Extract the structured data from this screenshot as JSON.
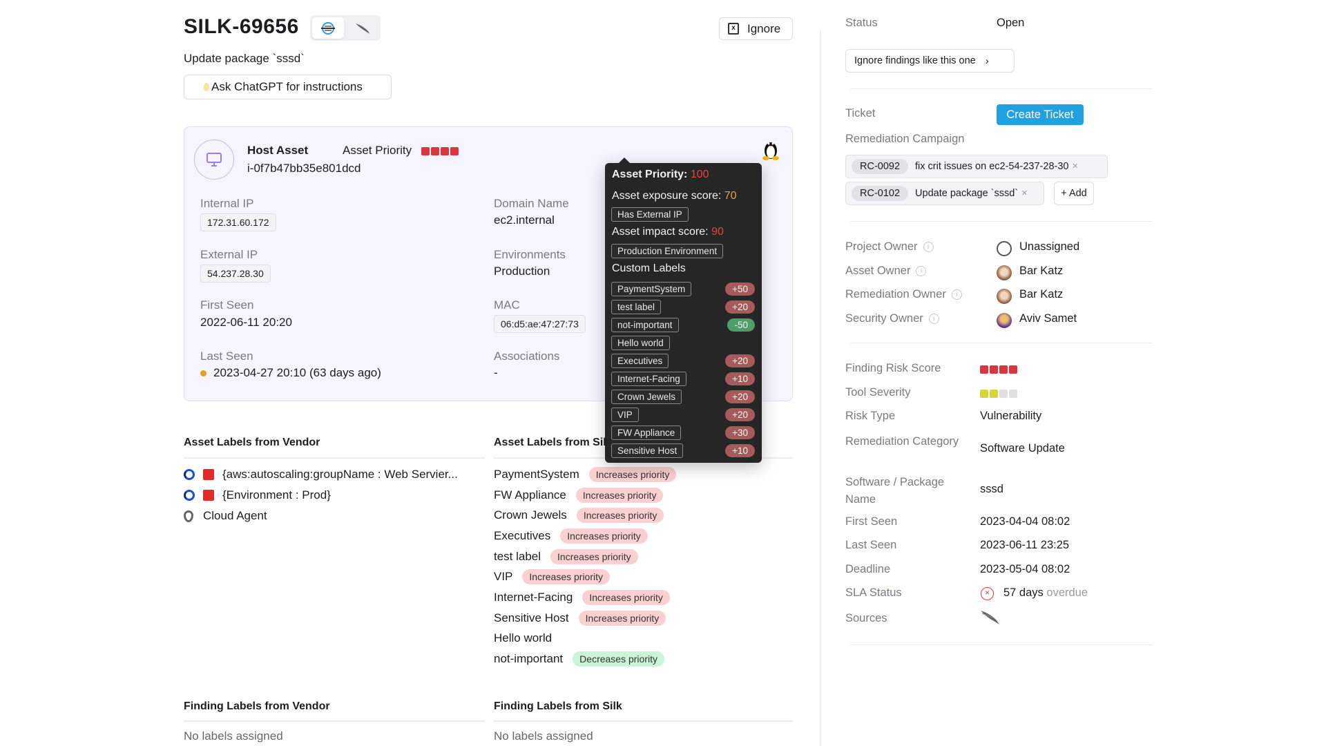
{
  "header": {
    "title": "SILK-69656",
    "subtitle": "Update package `sssd`",
    "ignore_label": "Ignore",
    "chatgpt_label": "Ask ChatGPT for instructions",
    "sources": [
      "silk-logo-icon",
      "crowdstrike-falcon-icon"
    ]
  },
  "asset": {
    "type_label": "Host Asset",
    "id": "i-0f7b47bb35e801dcd",
    "priority_label": "Asset Priority",
    "priority_level": 4,
    "os_icon": "linux-penguin-icon",
    "internal_ip_label": "Internal IP",
    "internal_ip": "172.31.60.172",
    "external_ip_label": "External IP",
    "external_ip": "54.237.28.30",
    "first_seen_label": "First Seen",
    "first_seen": "2022-06-11 20:20",
    "last_seen_label": "Last Seen",
    "last_seen": "2023-04-27 20:10 (63 days ago)",
    "domain_label": "Domain Name",
    "domain": "ec2.internal",
    "env_label": "Environments",
    "env": "Production",
    "mac_label": "MAC",
    "mac": "06:d5:ae:47:27:73",
    "assoc_label": "Associations",
    "assoc": "-"
  },
  "tooltip": {
    "priority_label": "Asset Priority:",
    "priority_value": "100",
    "exposure_label": "Asset exposure score:",
    "exposure_value": "70",
    "exposure_tags": [
      "Has External IP"
    ],
    "impact_label": "Asset impact score:",
    "impact_value": "90",
    "impact_tags": [
      "Production Environment"
    ],
    "custom_label": "Custom Labels",
    "custom": [
      {
        "name": "PaymentSystem",
        "score": "+50"
      },
      {
        "name": "test label",
        "score": "+20"
      },
      {
        "name": "not-important",
        "score": "-50"
      },
      {
        "name": "Hello world",
        "score": ""
      },
      {
        "name": "Executives",
        "score": "+20"
      },
      {
        "name": "Internet-Facing",
        "score": "+10"
      },
      {
        "name": "Crown Jewels",
        "score": "+20"
      },
      {
        "name": "VIP",
        "score": "+20"
      },
      {
        "name": "FW Appliance",
        "score": "+30"
      },
      {
        "name": "Sensitive Host",
        "score": "+10"
      }
    ]
  },
  "vendor_labels": {
    "title": "Asset Labels from Vendor",
    "items": [
      {
        "text": "{aws:autoscaling:groupName : Web Servier...",
        "icons": [
          "vendor-ring-icon",
          "aws-tag-icon"
        ]
      },
      {
        "text": "{Environment : Prod}",
        "icons": [
          "vendor-ring-icon",
          "aws-tag-icon"
        ]
      },
      {
        "text": "Cloud Agent",
        "icons": [
          "cloud-agent-shield-icon"
        ]
      }
    ]
  },
  "silk_labels": {
    "title": "Asset Labels from Silk",
    "items": [
      {
        "name": "PaymentSystem",
        "effect": "Increases priority"
      },
      {
        "name": "FW Appliance",
        "effect": "Increases priority"
      },
      {
        "name": "Crown Jewels",
        "effect": "Increases priority"
      },
      {
        "name": "Executives",
        "effect": "Increases priority"
      },
      {
        "name": "test label",
        "effect": "Increases priority"
      },
      {
        "name": "VIP",
        "effect": "Increases priority"
      },
      {
        "name": "Internet-Facing",
        "effect": "Increases priority"
      },
      {
        "name": "Sensitive Host",
        "effect": "Increases priority"
      },
      {
        "name": "Hello world",
        "effect": ""
      },
      {
        "name": "not-important",
        "effect": "Decreases priority"
      }
    ]
  },
  "finding_vendor": {
    "title": "Finding Labels from Vendor",
    "empty": "No labels assigned"
  },
  "finding_silk": {
    "title": "Finding Labels from Silk",
    "empty": "No labels assigned"
  },
  "side": {
    "status_label": "Status",
    "status": "Open",
    "ignore_like_label": "Ignore findings like this one",
    "ticket_label": "Ticket",
    "create_ticket": "Create Ticket",
    "campaign_label": "Remediation Campaign",
    "campaigns": [
      {
        "id": "RC-0092",
        "name": "fix crit issues on ec2-54-237-28-30"
      },
      {
        "id": "RC-0102",
        "name": "Update package `sssd`"
      }
    ],
    "add_label": "+ Add",
    "owners": [
      {
        "label": "Project Owner",
        "name": "Unassigned"
      },
      {
        "label": "Asset Owner",
        "name": "Bar Katz"
      },
      {
        "label": "Remediation Owner",
        "name": "Bar Katz"
      },
      {
        "label": "Security Owner",
        "name": "Aviv Samet"
      }
    ],
    "risk_score_label": "Finding Risk Score",
    "risk_score_level": 4,
    "tool_severity_label": "Tool Severity",
    "tool_severity_level": 2,
    "risk_type_label": "Risk Type",
    "risk_type": "Vulnerability",
    "rem_cat_label": "Remediation Category",
    "rem_cat": "Software Update",
    "pkg_label": "Software / Package Name",
    "pkg": "sssd",
    "first_seen_label": "First Seen",
    "first_seen": "2023-04-04 08:02",
    "last_seen_label": "Last Seen",
    "last_seen": "2023-06-11 23:25",
    "deadline_label": "Deadline",
    "deadline": "2023-05-04 08:02",
    "sla_label": "SLA Status",
    "sla_days": "57 days",
    "sla_suffix": "overdue",
    "sources_label": "Sources"
  },
  "colors": {
    "critical": "#d9363e",
    "accent": "#22a1e0",
    "severity_yellow": "#d4d63a",
    "increase_bg": "#fbd0d0",
    "decrease_bg": "#c8f5d5"
  }
}
